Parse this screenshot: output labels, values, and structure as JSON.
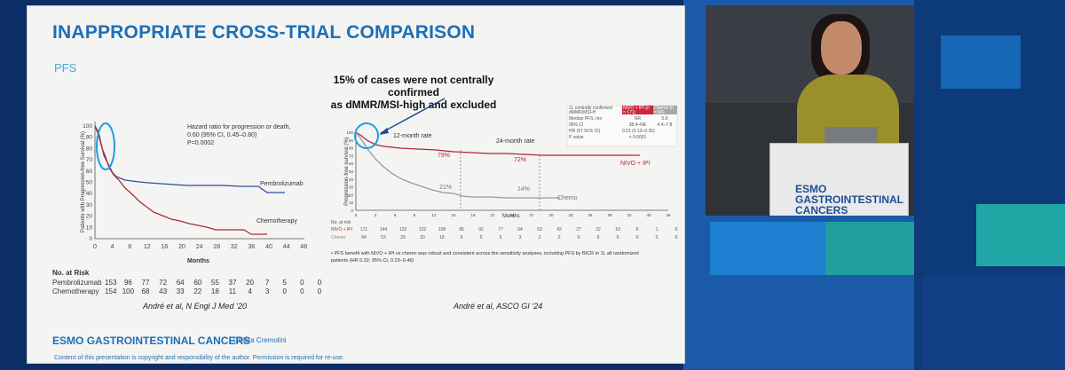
{
  "slide": {
    "title": "INAPPROPRIATE CROSS-TRIAL COMPARISON",
    "subtitle": "PFS",
    "callout": [
      "15% of cases were not centrally confirmed",
      "as dMMR/MSI-high and excluded"
    ],
    "left_chart": {
      "ylabel": "Patients with Progression-free Survival (%)",
      "xlabel": "Months",
      "hr_text": [
        "Hazard ratio for progression or death,",
        "0.60 (95% CI, 0.45–0.80)",
        "P=0.0002"
      ],
      "series": [
        "Pembrolizumab",
        "Chemotherapy"
      ],
      "y_ticks": [
        "0",
        "10",
        "20",
        "30",
        "40",
        "50",
        "60",
        "70",
        "80",
        "90",
        "100"
      ],
      "x_ticks": [
        "0",
        "4",
        "8",
        "12",
        "16",
        "20",
        "24",
        "28",
        "32",
        "36",
        "40",
        "44",
        "48"
      ],
      "risk_title": "No. at Risk",
      "risk_rows": [
        {
          "label": "Pembrolizumab",
          "values": [
            "153",
            "96",
            "77",
            "72",
            "64",
            "60",
            "55",
            "37",
            "20",
            "7",
            "5",
            "0",
            "0"
          ]
        },
        {
          "label": "Chemotherapy",
          "values": [
            "154",
            "100",
            "68",
            "43",
            "33",
            "22",
            "18",
            "11",
            "4",
            "3",
            "0",
            "0",
            "0"
          ]
        }
      ],
      "citation": "André et al, N Engl J Med ‘20"
    },
    "right_chart": {
      "ylabel": "Progression-free survival (%)",
      "xlabel": "Months",
      "labels": {
        "m12": "12-month rate",
        "m24": "24-month rate",
        "nivo": "NIVO + IPI",
        "chemo": "Chemo",
        "p79": "79%",
        "p72": "72%",
        "p21": "21%",
        "p14": "14%"
      },
      "y_ticks": [
        "0",
        "10",
        "20",
        "30",
        "40",
        "50",
        "60",
        "70",
        "80",
        "90",
        "100"
      ],
      "x_ticks": [
        "0",
        "3",
        "6",
        "9",
        "12",
        "15",
        "18",
        "21",
        "24",
        "27",
        "30",
        "33",
        "36",
        "39",
        "42",
        "45",
        "48"
      ],
      "risk_title": "No. at risk",
      "risk_rows": [
        {
          "label": "NIVO + IPI",
          "values": [
            "171",
            "144",
            "132",
            "122",
            "108",
            "95",
            "92",
            "77",
            "64",
            "53",
            "42",
            "27",
            "22",
            "10",
            "6",
            "1",
            "0"
          ]
        },
        {
          "label": "Chemo",
          "values": [
            "84",
            "53",
            "29",
            "20",
            "18",
            "9",
            "5",
            "5",
            "3",
            "2",
            "0",
            "0",
            "0",
            "0",
            "0",
            "0",
            "0"
          ]
        }
      ],
      "table": {
        "header": [
          "1L centrally confirmed dMMR/MSI-H",
          "NIVO + IPI (n = 171)",
          "Chemo (n = 84)"
        ],
        "rows": [
          [
            "Median PFS, mo",
            "NR",
            "5.9"
          ],
          [
            "95% CI",
            "38.4–NE",
            "4.4–7.8"
          ],
          [
            "HR (97.91% CI)",
            "0.21 (0.13–0.35)",
            ""
          ],
          [
            "P value",
            "< 0.0001",
            ""
          ]
        ]
      },
      "footnote": [
        "•  PFS benefit with NIVO + IPI vs chemo was robust and consistent across the sensitivity analyses, including PFS by BICR in 1L all randomized",
        "patients (HR 0.32; 95% CI, 0.23–0.46)"
      ],
      "citation": "André et al, ASCO GI ‘24"
    },
    "footer": {
      "logo_prefix": "ESMO",
      "logo_main": "GASTROINTESTINAL CANCERS",
      "author": "Chiara Cremolini",
      "copyright": "Content of this presentation is copyright and responsibility of the author. Permission is required for re-use."
    }
  },
  "stage": {
    "podium_logo": [
      "ESMO GASTROINTESTINAL",
      "CANCERS"
    ]
  },
  "colors": {
    "blue": "#1e6fb8",
    "red": "#b0283a",
    "gray": "#9a9a9a",
    "pembro": "#2e4e9e"
  }
}
